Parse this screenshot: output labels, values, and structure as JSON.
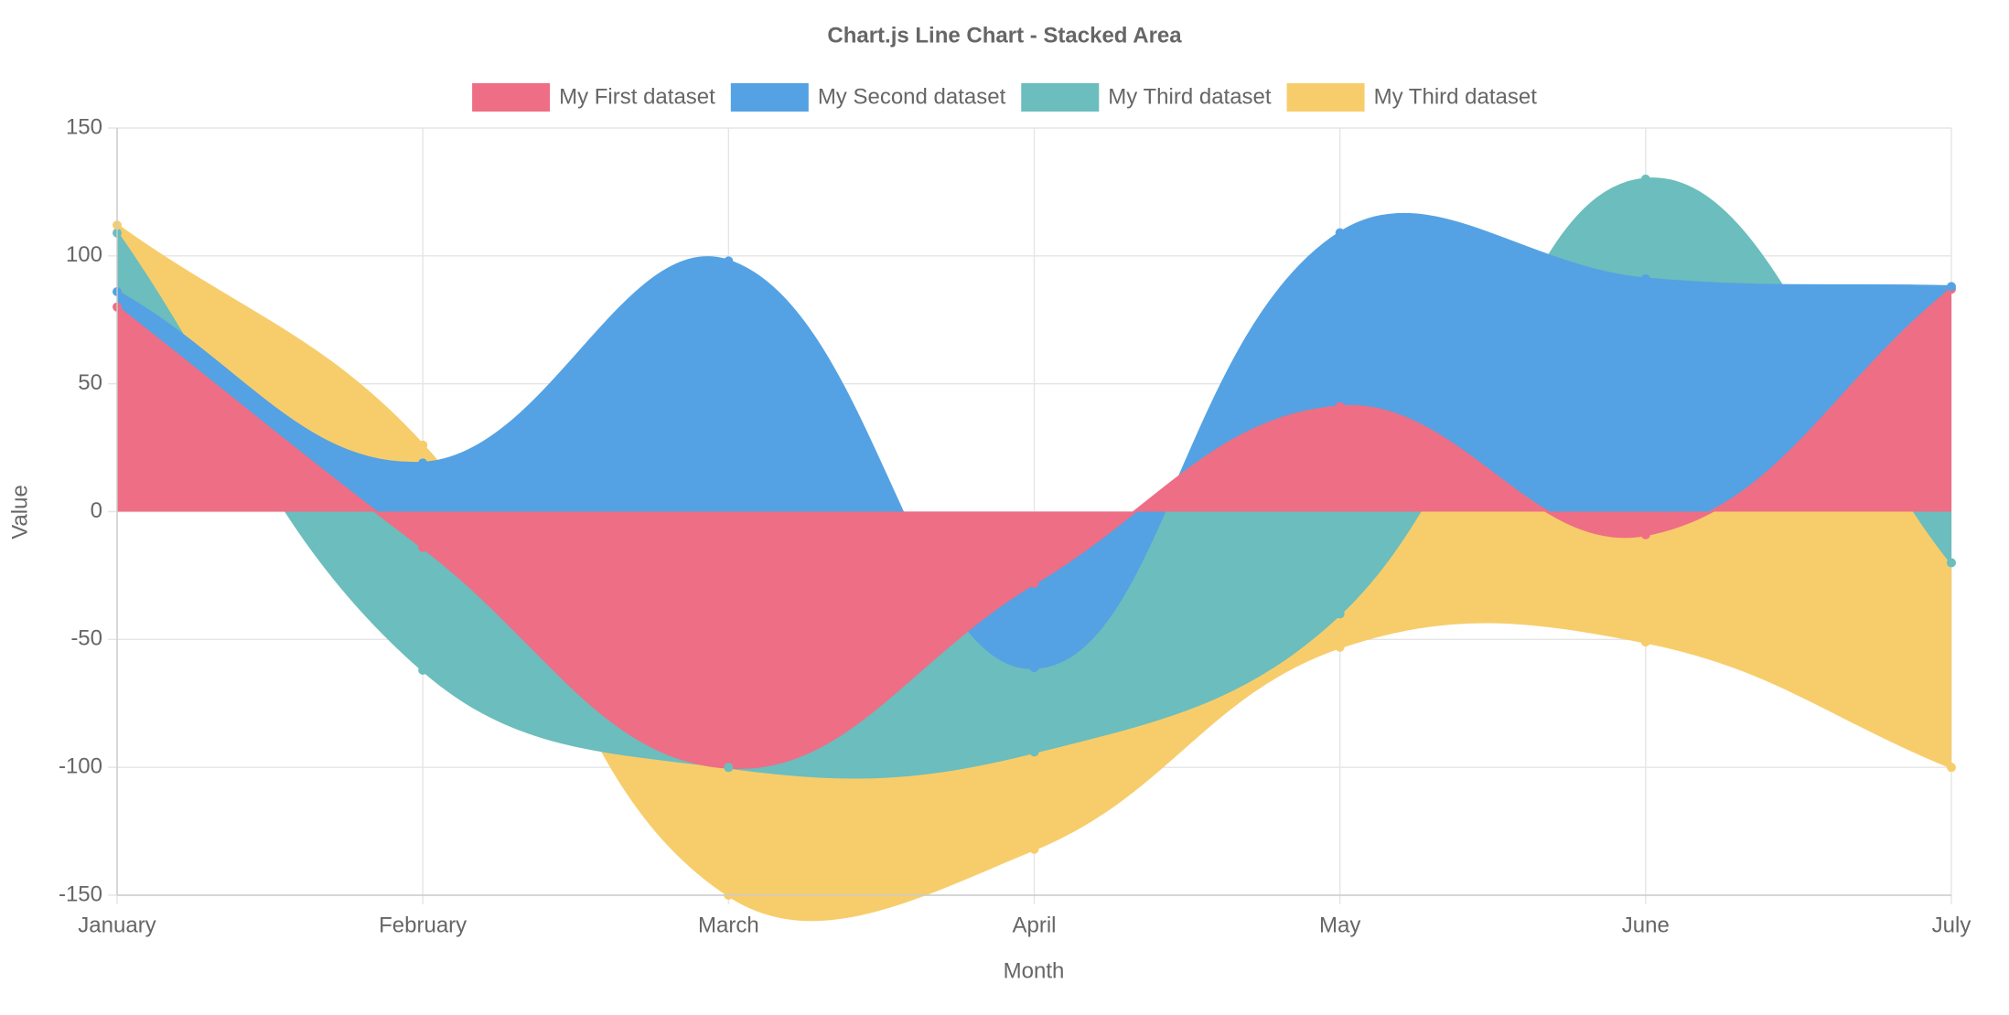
{
  "chart_data": {
    "type": "line",
    "title": "Chart.js Line Chart - Stacked Area",
    "categories": [
      "January",
      "February",
      "March",
      "April",
      "May",
      "June",
      "July"
    ],
    "series": [
      {
        "name": "My First dataset",
        "color": "#ee6e85",
        "values": [
          80,
          -14,
          -100,
          -28,
          41,
          -9,
          87
        ]
      },
      {
        "name": "My Second dataset",
        "color": "#54a2e3",
        "values": [
          86,
          19,
          98,
          -61,
          109,
          91,
          88
        ]
      },
      {
        "name": "My Third dataset",
        "color": "#6cbdbd",
        "values": [
          109,
          -62,
          -100,
          -94,
          -40,
          130,
          -20
        ]
      },
      {
        "name": "My Third dataset",
        "color": "#f7cd6b",
        "values": [
          112,
          26,
          -150,
          -132,
          -53,
          -51,
          -100
        ]
      }
    ],
    "x_label": "Month",
    "y_label": "Value",
    "ylim": [
      -150,
      150
    ],
    "yticks": [
      -150,
      -100,
      -50,
      0,
      50,
      100,
      150
    ],
    "grid": true,
    "legend": "top"
  }
}
